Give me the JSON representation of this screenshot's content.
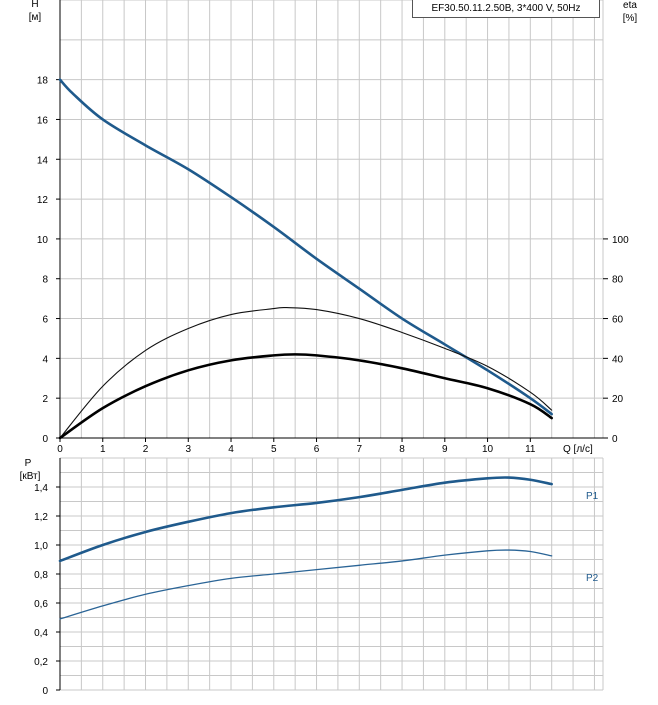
{
  "chart_data": [
    {
      "type": "line",
      "ylabel": "H",
      "yunit": "[м]",
      "y2label": "eta",
      "y2unit": "[%]",
      "xlabel": "Q [л/с]",
      "legend_title": "EF30.50.11.2.50B, 3*400 V, 50Hz",
      "xlim": [
        0,
        12.7
      ],
      "ylim": [
        0,
        22
      ],
      "y2lim": [
        0,
        220
      ],
      "xticks": [
        "0",
        "1",
        "2",
        "3",
        "4",
        "5",
        "6",
        "7",
        "8",
        "9",
        "10",
        "11"
      ],
      "yticks": [
        "0",
        "2",
        "4",
        "6",
        "8",
        "10",
        "12",
        "14",
        "16",
        "18"
      ],
      "y2ticks": [
        "0",
        "20",
        "40",
        "60",
        "80",
        "100"
      ],
      "grid": true,
      "colors": {
        "head": "#1f5a8c",
        "eta": "#000000",
        "grid": "#c8c8c8"
      },
      "series": [
        {
          "axis": "left",
          "style": "thick-blue",
          "x": [
            0,
            0.3,
            1,
            2,
            3,
            4,
            5,
            6,
            7,
            8,
            9,
            10,
            11,
            11.5
          ],
          "y": [
            18,
            17.3,
            16.0,
            14.7,
            13.5,
            12.1,
            10.6,
            9.0,
            7.5,
            6.0,
            4.7,
            3.4,
            2.0,
            1.2
          ]
        },
        {
          "axis": "right",
          "style": "thin-black",
          "x": [
            0,
            1,
            2,
            3,
            4,
            5,
            5.3,
            6,
            7,
            8,
            9,
            10,
            11,
            11.5
          ],
          "y": [
            0,
            26,
            44,
            55,
            62,
            65,
            65.5,
            64.5,
            60,
            53,
            45,
            36,
            23,
            14
          ]
        },
        {
          "axis": "right",
          "style": "thick-black",
          "x": [
            0,
            1,
            2,
            3,
            4,
            5,
            5.5,
            6,
            7,
            8,
            9,
            10,
            11,
            11.5
          ],
          "y": [
            0,
            15,
            26,
            34,
            39,
            41.5,
            42,
            41.5,
            39,
            35,
            30,
            25,
            17,
            10
          ]
        }
      ]
    },
    {
      "type": "line",
      "ylabel": "P",
      "yunit": "[кВт]",
      "xlim": [
        0,
        12.7
      ],
      "ylim": [
        0,
        1.6
      ],
      "yticks": [
        "0",
        "0,2",
        "0,4",
        "0,6",
        "0,8",
        "1,0",
        "1,2",
        "1,4"
      ],
      "grid": true,
      "colors": {
        "p1": "#1f5a8c",
        "p2": "#1f5a8c",
        "label": "#1f5a8c"
      },
      "series": [
        {
          "name": "P1",
          "style": "thick-blue",
          "x": [
            0,
            1,
            2,
            3,
            4,
            5,
            6,
            7,
            8,
            9,
            10,
            10.5,
            11,
            11.5
          ],
          "y": [
            0.89,
            1.0,
            1.09,
            1.16,
            1.22,
            1.26,
            1.29,
            1.33,
            1.38,
            1.43,
            1.46,
            1.465,
            1.45,
            1.42
          ]
        },
        {
          "name": "P2",
          "style": "thin-blue",
          "x": [
            0,
            1,
            2,
            3,
            4,
            5,
            6,
            7,
            8,
            9,
            10,
            10.5,
            11,
            11.5
          ],
          "y": [
            0.49,
            0.58,
            0.66,
            0.72,
            0.77,
            0.8,
            0.83,
            0.86,
            0.89,
            0.93,
            0.96,
            0.965,
            0.955,
            0.925
          ]
        }
      ]
    }
  ]
}
